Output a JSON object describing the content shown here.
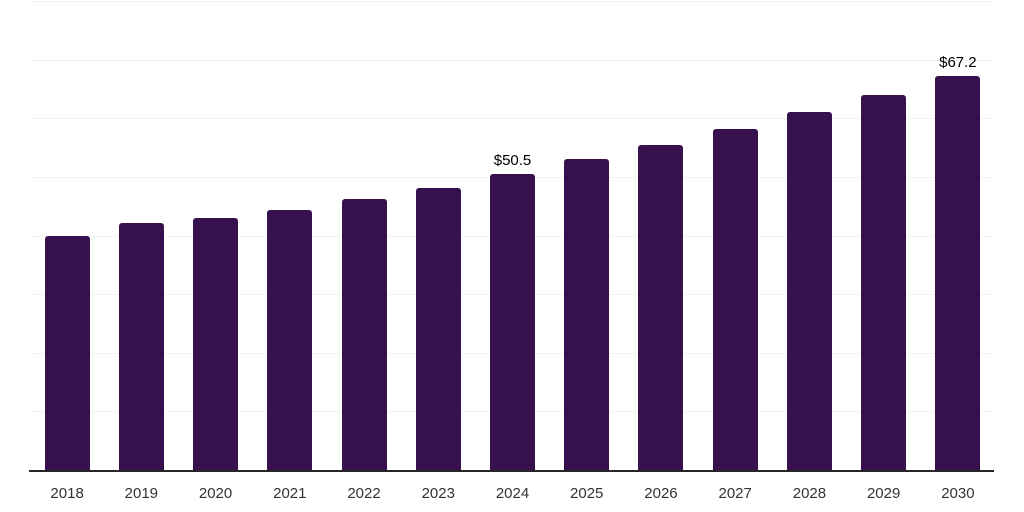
{
  "chart_data": {
    "type": "bar",
    "title": "",
    "categories": [
      "2018",
      "2019",
      "2020",
      "2021",
      "2022",
      "2023",
      "2024",
      "2025",
      "2026",
      "2027",
      "2028",
      "2029",
      "2030"
    ],
    "values": [
      39.9,
      42.2,
      42.9,
      44.4,
      46.3,
      48.1,
      50.5,
      53.1,
      55.5,
      58.2,
      61.0,
      64.0,
      67.2
    ],
    "data_labels": [
      {
        "category": "2024",
        "text": "$50.5"
      },
      {
        "category": "2030",
        "text": "$67.2"
      }
    ],
    "xlabel": "",
    "ylabel": "",
    "ylim": [
      0,
      80
    ],
    "grid_step": 10,
    "grid": true,
    "legend": false,
    "colors": {
      "bar": "#36114E",
      "grid": "#f2f2f2",
      "axis": "#262626",
      "tick_label": "#333333",
      "data_label": "#000000",
      "background": "#ffffff"
    }
  }
}
